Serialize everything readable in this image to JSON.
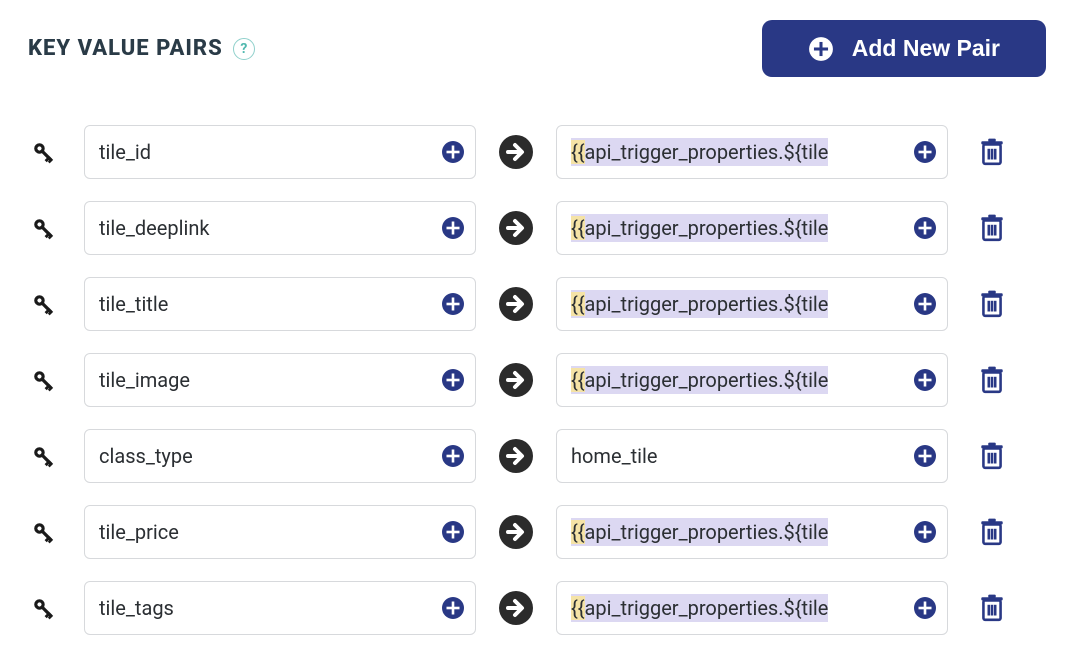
{
  "colors": {
    "primary": "#293885",
    "title": "#2a3b47",
    "border": "#d7d9dc",
    "text": "#2b2f33",
    "highlight_bg": "#dcd8f2",
    "brace_bg": "#f5e3a6",
    "help_border": "#8fd0cb",
    "help_text": "#4fb8ae",
    "arrow_bg": "#2b2b2b",
    "plus_small": "#293885",
    "trash": "#293885",
    "key_icon": "#1a1a1a"
  },
  "header": {
    "title": "KEY VALUE PAIRS",
    "help_glyph": "?",
    "add_button_label": "Add New Pair"
  },
  "pairs": [
    {
      "key": "tile_id",
      "value": "{{api_trigger_properties.${tile",
      "value_is_template": true
    },
    {
      "key": "tile_deeplink",
      "value": "{{api_trigger_properties.${tile",
      "value_is_template": true
    },
    {
      "key": "tile_title",
      "value": "{{api_trigger_properties.${tile",
      "value_is_template": true
    },
    {
      "key": "tile_image",
      "value": "{{api_trigger_properties.${tile",
      "value_is_template": true
    },
    {
      "key": "class_type",
      "value": "home_tile",
      "value_is_template": false
    },
    {
      "key": "tile_price",
      "value": "{{api_trigger_properties.${tile",
      "value_is_template": true
    },
    {
      "key": "tile_tags",
      "value": "{{api_trigger_properties.${tile",
      "value_is_template": true
    }
  ]
}
